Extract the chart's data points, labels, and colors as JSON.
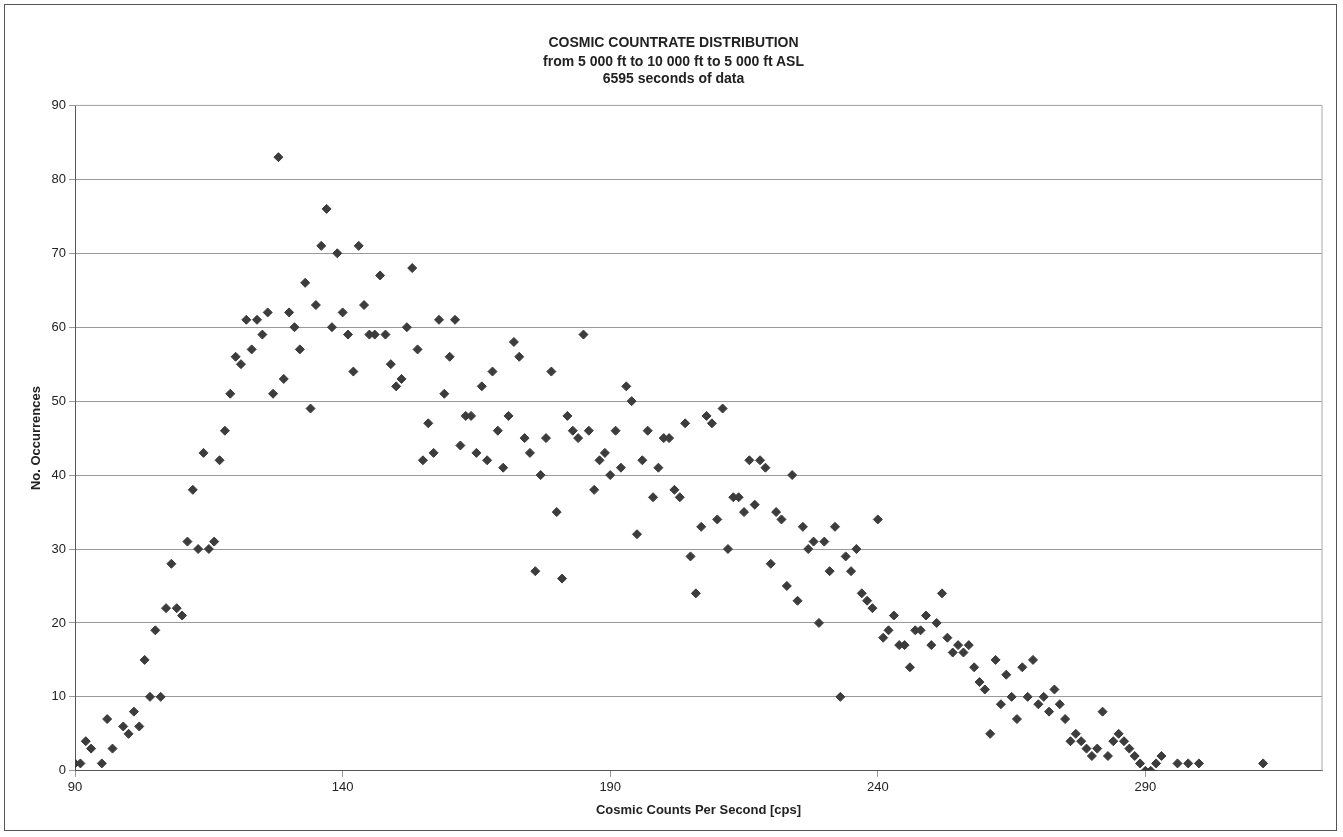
{
  "chart_data": {
    "type": "scatter",
    "title": "COSMIC COUNTRATE DISTRIBUTION",
    "subtitle": "from 5 000 ft to 10 000 ft to 5 000 ft ASL\n6595 seconds of data",
    "xlabel": "Cosmic Counts Per Second [cps]",
    "ylabel": "No. Occurrences",
    "series": [
      {
        "color": "#3c3c3c",
        "x": [
          90,
          91,
          92,
          93,
          95,
          96,
          97,
          99,
          100,
          101,
          102,
          103,
          104,
          105,
          106,
          107,
          108,
          109,
          110,
          111,
          112,
          113,
          114,
          115,
          116,
          117,
          118,
          119,
          120,
          121,
          122,
          123,
          124,
          125,
          126,
          127,
          128,
          129,
          130,
          131,
          132,
          133,
          134,
          135,
          136,
          137,
          138,
          139,
          140,
          141,
          142,
          143,
          144,
          145,
          146,
          147,
          148,
          149,
          150,
          151,
          152,
          153,
          154,
          155,
          156,
          157,
          158,
          159,
          160,
          161,
          162,
          163,
          164,
          165,
          166,
          167,
          168,
          169,
          170,
          171,
          172,
          173,
          174,
          175,
          176,
          177,
          178,
          179,
          180,
          181,
          182,
          183,
          184,
          185,
          186,
          187,
          188,
          189,
          190,
          191,
          192,
          193,
          194,
          195,
          196,
          197,
          198,
          199,
          200,
          201,
          202,
          203,
          204,
          205,
          206,
          207,
          208,
          209,
          210,
          211,
          212,
          213,
          214,
          215,
          216,
          217,
          218,
          219,
          220,
          221,
          222,
          223,
          224,
          225,
          226,
          227,
          228,
          229,
          230,
          231,
          232,
          233,
          234,
          235,
          236,
          237,
          238,
          239,
          240,
          241,
          242,
          243,
          244,
          245,
          246,
          247,
          248,
          249,
          250,
          251,
          252,
          253,
          254,
          255,
          256,
          257,
          258,
          259,
          260,
          261,
          262,
          263,
          264,
          265,
          266,
          267,
          268,
          269,
          270,
          271,
          272,
          273,
          274,
          275,
          276,
          277,
          278,
          279,
          280,
          281,
          282,
          283,
          284,
          285,
          286,
          287,
          288,
          289,
          290,
          291,
          292,
          293,
          296,
          298,
          300,
          312
        ],
        "values": [
          1,
          1,
          4,
          3,
          1,
          7,
          3,
          6,
          5,
          8,
          6,
          15,
          10,
          19,
          10,
          22,
          28,
          22,
          21,
          31,
          38,
          30,
          43,
          30,
          31,
          42,
          46,
          51,
          56,
          55,
          61,
          57,
          61,
          59,
          62,
          51,
          83,
          53,
          62,
          60,
          57,
          66,
          49,
          63,
          71,
          76,
          60,
          70,
          62,
          59,
          54,
          71,
          63,
          59,
          59,
          67,
          59,
          55,
          52,
          53,
          60,
          68,
          57,
          42,
          47,
          43,
          61,
          51,
          56,
          61,
          44,
          48,
          48,
          43,
          52,
          42,
          54,
          46,
          41,
          48,
          58,
          56,
          45,
          43,
          27,
          40,
          45,
          54,
          35,
          26,
          48,
          46,
          45,
          59,
          46,
          38,
          42,
          43,
          40,
          46,
          41,
          52,
          50,
          32,
          42,
          46,
          37,
          41,
          45,
          45,
          38,
          37,
          47,
          29,
          24,
          33,
          48,
          47,
          34,
          49,
          30,
          37,
          37,
          35,
          42,
          36,
          42,
          41,
          28,
          35,
          34,
          25,
          40,
          23,
          33,
          30,
          31,
          20,
          31,
          27,
          33,
          10,
          29,
          27,
          30,
          24,
          23,
          22,
          34,
          18,
          19,
          21,
          17,
          17,
          14,
          19,
          19,
          21,
          17,
          20,
          24,
          18,
          16,
          17,
          16,
          17,
          14,
          12,
          11,
          5,
          15,
          9,
          13,
          10,
          7,
          14,
          10,
          15,
          9,
          10,
          8,
          11,
          9,
          7,
          4,
          5,
          4,
          3,
          2,
          3,
          8,
          2,
          4,
          5,
          4,
          3,
          2,
          1,
          0,
          0,
          1,
          2,
          1,
          1,
          1,
          1
        ]
      }
    ],
    "xlim": [
      90,
      323
    ],
    "xticks": [
      90,
      140,
      190,
      240,
      290
    ],
    "ylim": [
      0,
      90
    ],
    "yticks": [
      0,
      10,
      20,
      30,
      40,
      50,
      60,
      70,
      80,
      90
    ],
    "grid": "y",
    "marker": "diamond",
    "legend": false
  }
}
